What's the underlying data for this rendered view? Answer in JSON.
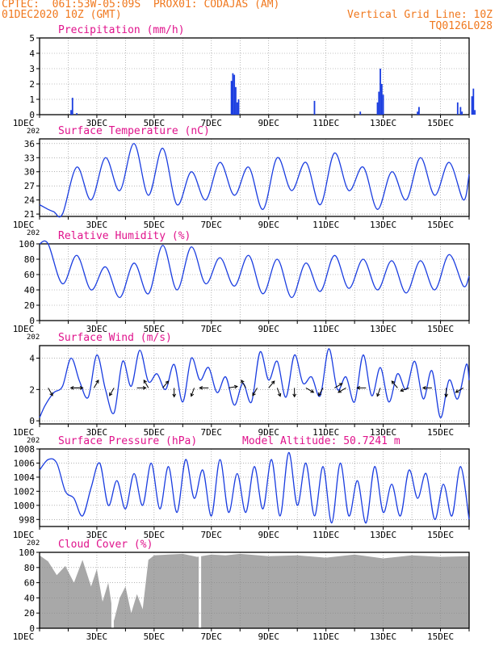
{
  "header": {
    "left_line1": "CPTEC:  061:53W-05:09S  PROX01: CODAJAS (AM)",
    "left_line2": "01DEC2020 10Z (GMT)",
    "right_line1": "Vertical Grid Line: 10Z",
    "right_line2": "TQ0126L028"
  },
  "colors": {
    "header": "#f0781e",
    "title": "#e0138c",
    "series": "#1a3de0",
    "cloud": "#a8a8a8",
    "arrow": "#000000",
    "grid": "#888888"
  },
  "x_ticks": [
    "1DEC",
    "3DEC",
    "5DEC",
    "7DEC",
    "9DEC",
    "11DEC",
    "13DEC",
    "15DEC"
  ],
  "x_tick_days": [
    1,
    3,
    5,
    7,
    9,
    11,
    13,
    15
  ],
  "x_year_stub": "202",
  "chart_data": [
    {
      "id": "precip",
      "type": "bar",
      "title": "Precipitation (mm/h)",
      "ylim": [
        0,
        5
      ],
      "yticks": [
        0,
        1,
        2,
        3,
        4,
        5
      ],
      "series": [
        {
          "x": [
            2.1,
            2.15,
            2.3,
            7.7,
            7.75,
            7.8,
            7.85,
            7.9,
            7.95,
            10.6,
            12.2,
            12.8,
            12.85,
            12.9,
            12.95,
            13.0,
            14.2,
            14.25,
            15.6,
            15.7,
            15.75,
            16.1,
            16.15,
            16.2
          ],
          "values": [
            0.3,
            1.1,
            0.1,
            2.2,
            2.7,
            2.6,
            1.8,
            0.8,
            1.0,
            0.9,
            0.2,
            0.8,
            1.5,
            3.0,
            2.0,
            1.3,
            0.2,
            0.5,
            0.8,
            0.5,
            0.2,
            1.2,
            1.7,
            0.3
          ]
        }
      ]
    },
    {
      "id": "temp",
      "type": "line",
      "title": "Surface Temperature (nC)",
      "ylim": [
        20.5,
        37
      ],
      "yticks": [
        21,
        24,
        27,
        30,
        33,
        36
      ],
      "series": [
        {
          "x": [
            1.0,
            1.3,
            1.5,
            1.8,
            2.3,
            2.8,
            3.3,
            3.8,
            4.3,
            4.8,
            5.3,
            5.8,
            6.3,
            6.8,
            7.3,
            7.8,
            8.3,
            8.8,
            9.3,
            9.8,
            10.3,
            10.8,
            11.3,
            11.8,
            12.3,
            12.8,
            13.3,
            13.8,
            14.3,
            14.8,
            15.3,
            15.8,
            16.0
          ],
          "values": [
            23,
            22,
            21.5,
            21,
            31,
            24,
            33,
            26,
            36,
            25,
            35,
            23,
            30,
            24,
            32,
            25,
            31,
            22,
            33,
            26,
            32,
            23,
            34,
            26,
            31,
            22,
            30,
            24,
            33,
            25,
            32,
            24,
            29.5
          ]
        }
      ]
    },
    {
      "id": "rh",
      "type": "line",
      "title": "Relative Humidity (%)",
      "ylim": [
        0,
        100
      ],
      "yticks": [
        0,
        20,
        40,
        60,
        80,
        100
      ],
      "series": [
        {
          "x": [
            1.0,
            1.3,
            1.8,
            2.3,
            2.8,
            3.3,
            3.8,
            4.3,
            4.8,
            5.3,
            5.8,
            6.3,
            6.8,
            7.3,
            7.8,
            8.3,
            8.8,
            9.3,
            9.8,
            10.3,
            10.8,
            11.3,
            11.8,
            12.3,
            12.8,
            13.3,
            13.8,
            14.3,
            14.8,
            15.3,
            15.8,
            16.0
          ],
          "values": [
            100,
            100,
            48,
            85,
            40,
            70,
            30,
            75,
            35,
            98,
            40,
            96,
            48,
            82,
            45,
            85,
            35,
            80,
            30,
            75,
            38,
            85,
            42,
            80,
            40,
            78,
            36,
            78,
            40,
            86,
            45,
            58
          ]
        }
      ]
    },
    {
      "id": "wind",
      "type": "line",
      "title": "Surface Wind (m/s)",
      "ylim": [
        -0.2,
        4.8
      ],
      "yticks": [
        0,
        2,
        4
      ],
      "series": [
        {
          "x": [
            1.0,
            1.2,
            1.5,
            1.8,
            2.1,
            2.4,
            2.7,
            3.0,
            3.3,
            3.6,
            3.9,
            4.2,
            4.5,
            4.8,
            5.1,
            5.4,
            5.7,
            6.0,
            6.3,
            6.6,
            6.9,
            7.2,
            7.5,
            7.8,
            8.1,
            8.4,
            8.7,
            9.0,
            9.3,
            9.6,
            9.9,
            10.2,
            10.5,
            10.8,
            11.1,
            11.4,
            11.7,
            12.0,
            12.3,
            12.6,
            12.9,
            13.2,
            13.5,
            13.8,
            14.1,
            14.4,
            14.7,
            15.0,
            15.3,
            15.6,
            15.9,
            16.0
          ],
          "values": [
            0.2,
            1.0,
            1.8,
            2.2,
            4.0,
            2.5,
            1.5,
            4.2,
            2.0,
            0.5,
            3.8,
            2.2,
            4.5,
            2.5,
            3.0,
            2.0,
            3.6,
            1.2,
            4.0,
            2.6,
            3.4,
            1.8,
            2.8,
            1.0,
            2.4,
            1.2,
            4.4,
            2.6,
            3.8,
            1.5,
            4.2,
            2.4,
            2.8,
            1.6,
            4.6,
            2.0,
            2.8,
            1.2,
            4.2,
            1.6,
            3.4,
            1.2,
            3.0,
            2.0,
            3.8,
            1.4,
            3.2,
            0.2,
            2.6,
            1.4,
            3.6,
            2.6
          ]
        }
      ],
      "arrows": [
        {
          "day": 1.3,
          "dir": 150
        },
        {
          "day": 2.2,
          "dir": 90
        },
        {
          "day": 2.4,
          "dir": 270
        },
        {
          "day": 2.9,
          "dir": 30
        },
        {
          "day": 3.6,
          "dir": 210
        },
        {
          "day": 4.4,
          "dir": 90
        },
        {
          "day": 4.8,
          "dir": 330
        },
        {
          "day": 5.3,
          "dir": 40
        },
        {
          "day": 5.7,
          "dir": 180
        },
        {
          "day": 6.4,
          "dir": 200
        },
        {
          "day": 6.9,
          "dir": 270
        },
        {
          "day": 7.6,
          "dir": 80
        },
        {
          "day": 8.2,
          "dir": 330
        },
        {
          "day": 8.6,
          "dir": 210
        },
        {
          "day": 9.0,
          "dir": 40
        },
        {
          "day": 9.3,
          "dir": 160
        },
        {
          "day": 9.9,
          "dir": 180
        },
        {
          "day": 10.3,
          "dir": 120
        },
        {
          "day": 10.9,
          "dir": 210
        },
        {
          "day": 11.3,
          "dir": 60
        },
        {
          "day": 11.7,
          "dir": 240
        },
        {
          "day": 12.4,
          "dir": 270
        },
        {
          "day": 12.9,
          "dir": 200
        },
        {
          "day": 13.5,
          "dir": 320
        },
        {
          "day": 13.9,
          "dir": 250
        },
        {
          "day": 14.7,
          "dir": 270
        },
        {
          "day": 15.2,
          "dir": 180
        },
        {
          "day": 15.8,
          "dir": 240
        }
      ]
    },
    {
      "id": "press",
      "type": "line",
      "title": "Surface Pressure (hPa)",
      "subtitle": "Model Altitude: 50.7241 m",
      "ylim": [
        997,
        1008
      ],
      "yticks": [
        998,
        1000,
        1002,
        1004,
        1006,
        1008
      ],
      "series": [
        {
          "x": [
            1.0,
            1.3,
            1.6,
            1.9,
            2.2,
            2.5,
            2.8,
            3.1,
            3.4,
            3.7,
            4.0,
            4.3,
            4.6,
            4.9,
            5.2,
            5.5,
            5.8,
            6.1,
            6.4,
            6.7,
            7.0,
            7.3,
            7.6,
            7.9,
            8.2,
            8.5,
            8.8,
            9.1,
            9.4,
            9.7,
            10.0,
            10.3,
            10.6,
            10.9,
            11.2,
            11.5,
            11.8,
            12.1,
            12.4,
            12.7,
            13.0,
            13.3,
            13.6,
            13.9,
            14.2,
            14.5,
            14.8,
            15.1,
            15.4,
            15.7,
            16.0
          ],
          "values": [
            1005,
            1006.5,
            1006,
            1002,
            1001,
            998.5,
            1002.5,
            1006,
            1000,
            1003.5,
            999.5,
            1004.5,
            1000,
            1006,
            999.5,
            1005.5,
            999,
            1006.5,
            1001,
            1005,
            998.5,
            1006.5,
            999,
            1004.5,
            999,
            1005.5,
            999.5,
            1006.5,
            998.5,
            1007.5,
            1000,
            1006,
            998.5,
            1005.5,
            997.5,
            1006,
            998.5,
            1003.5,
            997.5,
            1005.5,
            999,
            1003,
            998.5,
            1005,
            1001,
            1004.5,
            998,
            1003,
            998.5,
            1005.5,
            998
          ]
        }
      ]
    },
    {
      "id": "cloud",
      "type": "area",
      "title": "Cloud Cover (%)",
      "ylim": [
        0,
        100
      ],
      "yticks": [
        0,
        20,
        40,
        60,
        80,
        100
      ],
      "series": [
        {
          "x": [
            1.0,
            1.3,
            1.6,
            1.9,
            2.2,
            2.5,
            2.8,
            3.0,
            3.2,
            3.4,
            3.6,
            3.8,
            4.0,
            4.2,
            4.4,
            4.6,
            4.8,
            5.0,
            5.5,
            6.0,
            6.5,
            7.0,
            7.5,
            8.0,
            9.0,
            10.0,
            11.0,
            12.0,
            13.0,
            14.0,
            15.0,
            16.0
          ],
          "values": [
            96,
            88,
            70,
            82,
            60,
            90,
            55,
            78,
            35,
            60,
            10,
            40,
            55,
            20,
            45,
            25,
            90,
            96,
            97,
            98,
            94,
            97,
            96,
            98,
            95,
            96,
            93,
            97,
            92,
            96,
            94,
            95
          ]
        }
      ],
      "gaps": [
        3.55,
        6.6
      ]
    }
  ]
}
